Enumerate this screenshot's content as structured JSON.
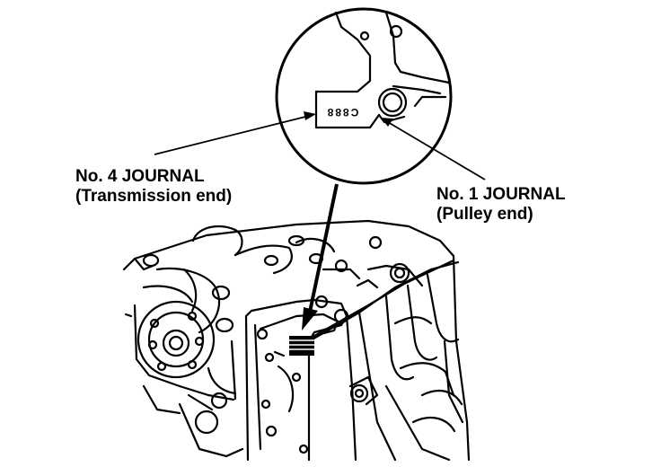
{
  "callouts": {
    "no4": {
      "title": "No. 4 JOURNAL",
      "subtitle": "(Transmission end)"
    },
    "no1": {
      "title": "No. 1 JOURNAL",
      "subtitle": "(Pulley end)"
    }
  },
  "stamp_code": "C888",
  "colors": {
    "ink": "#000000",
    "paper": "#ffffff"
  }
}
